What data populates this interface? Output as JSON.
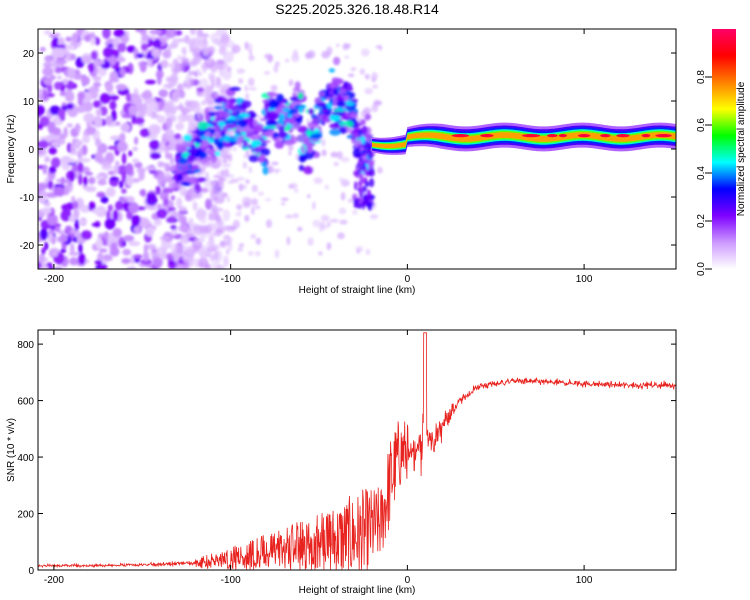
{
  "title": "S225.2025.326.18.48.R14",
  "colors": {
    "snr_line": "#e8231f",
    "frame": "#000000",
    "background": "#ffffff"
  },
  "chart_data": [
    {
      "type": "heatmap",
      "title": "S225.2025.326.18.48.R14",
      "xlabel": "Height of straight line (km)",
      "ylabel": "Frequency (Hz)",
      "xlim": [
        -209,
        152
      ],
      "ylim": [
        -25,
        25
      ],
      "xticks": [
        -200,
        -100,
        0,
        100
      ],
      "xtick_labels": [
        "-200",
        "-100",
        "0",
        "100"
      ],
      "yticks": [
        20,
        10,
        0,
        -10,
        -20
      ],
      "ytick_labels": [
        "20",
        "10",
        "0",
        "-10",
        "-20"
      ],
      "colorbar": {
        "label": "Normalized spectral amplitude",
        "range": [
          0,
          1
        ],
        "ticks": [
          0.0,
          0.2,
          0.4,
          0.6,
          0.8
        ],
        "tick_labels": [
          "0.0",
          "0.2",
          "0.4",
          "0.6",
          "0.8"
        ],
        "colormap": [
          "#ffffff",
          "#cc99ff",
          "#7f00ff",
          "#0000ff",
          "#00ffff",
          "#00ff00",
          "#ffff00",
          "#ff8000",
          "#ff0000",
          "#ff0066"
        ]
      },
      "features": {
        "noise_region_km": [
          -209,
          -130
        ],
        "turbulent_region_km": [
          -130,
          -20
        ],
        "carrier_region_km": [
          -20,
          152
        ],
        "carrier_frequency_hz": 2.5
      }
    },
    {
      "type": "line",
      "xlabel": "Height of straight line (km)",
      "ylabel": "SNR (10 * v/v)",
      "xlim": [
        -209,
        152
      ],
      "ylim": [
        0,
        850
      ],
      "xticks": [
        -200,
        -100,
        0,
        100
      ],
      "xtick_labels": [
        "-200",
        "-100",
        "0",
        "100"
      ],
      "yticks": [
        0,
        200,
        400,
        600,
        800
      ],
      "ytick_labels": [
        "0",
        "200",
        "400",
        "600",
        "800"
      ],
      "series": [
        {
          "name": "SNR",
          "envelope_x": [
            -209,
            -180,
            -150,
            -120,
            -100,
            -80,
            -60,
            -40,
            -25,
            -15,
            -10,
            -5,
            0,
            5,
            10,
            15,
            20,
            30,
            40,
            60,
            80,
            100,
            120,
            152
          ],
          "envelope_mean": [
            15,
            15,
            18,
            25,
            45,
            70,
            95,
            120,
            140,
            180,
            320,
            420,
            440,
            430,
            470,
            450,
            520,
            600,
            650,
            670,
            665,
            660,
            655,
            655
          ],
          "envelope_spread": [
            8,
            8,
            8,
            15,
            40,
            60,
            80,
            120,
            150,
            120,
            150,
            120,
            100,
            120,
            160,
            100,
            60,
            25,
            20,
            18,
            18,
            18,
            18,
            18
          ]
        }
      ]
    }
  ]
}
